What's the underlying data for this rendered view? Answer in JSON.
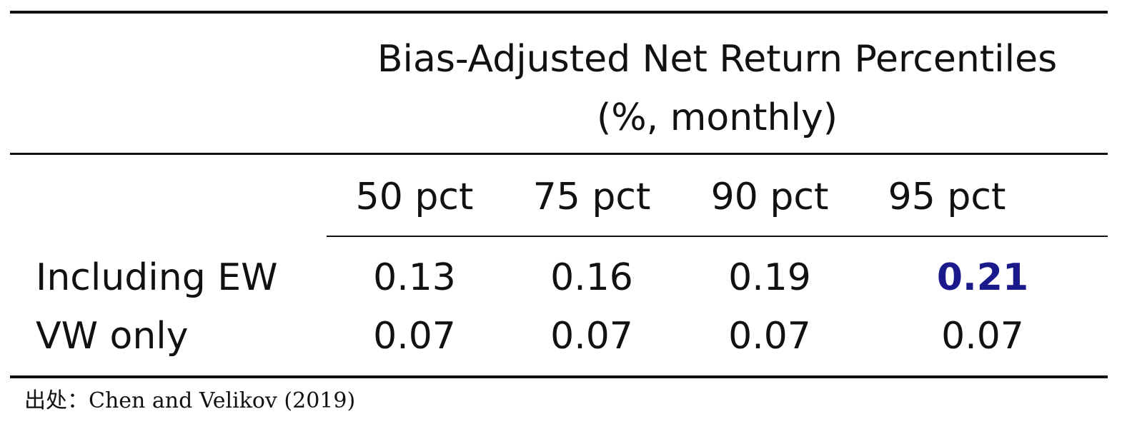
{
  "table": {
    "header_line1": "Bias-Adjusted Net Return Percentiles",
    "header_line2": "(%, monthly)",
    "columns": [
      "50 pct",
      "75 pct",
      "90 pct",
      "95 pct"
    ],
    "rows": [
      {
        "label": "Including EW",
        "values": [
          "0.13",
          "0.16",
          "0.19",
          "0.21"
        ]
      },
      {
        "label": "VW only",
        "values": [
          "0.07",
          "0.07",
          "0.07",
          "0.07"
        ]
      }
    ],
    "highlight_color": "#1a1a8c"
  },
  "source": "出处：Chen and Velikov (2019)"
}
